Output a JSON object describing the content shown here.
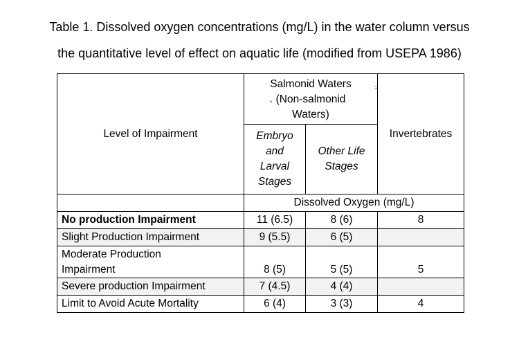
{
  "caption": {
    "line1": "Table 1. Dissolved oxygen concentrations (mg/L) in the water column versus",
    "line2": "the quantitative level of effect on aquatic life (modified from USEPA 1986)"
  },
  "header": {
    "level": "Level of Impairment",
    "salmonid_line1": "Salmonid Waters",
    "salmonid_line2": "(Non-salmonid",
    "salmonid_line3": "Waters)",
    "embryo_line1": "Embryo",
    "embryo_line2": "and",
    "embryo_line3": "Larval",
    "embryo_line4": "Stages",
    "other_line1": "Other Life",
    "other_line2": "Stages",
    "invertebrates": "Invertebrates",
    "dissolved_oxygen": "Dissolved Oxygen (mg/L)"
  },
  "rows": [
    {
      "label": "No production Impairment",
      "embryo": "11 (6.5)",
      "other": "8 (6)",
      "invert": "8"
    },
    {
      "label": "Slight Production Impairment",
      "embryo": "9 (5.5)",
      "other": "6 (5)",
      "invert": ""
    },
    {
      "label_line1": "Moderate Production",
      "label_line2": "Impairment",
      "embryo": "8 (5)",
      "other": "5 (5)",
      "invert": "5"
    },
    {
      "label": "Severe production Impairment",
      "embryo": "7 (4.5)",
      "other": "4 (4)",
      "invert": ""
    },
    {
      "label": "Limit to Avoid Acute Mortality",
      "embryo": "6 (4)",
      "other": "3 (3)",
      "invert": "4"
    }
  ]
}
